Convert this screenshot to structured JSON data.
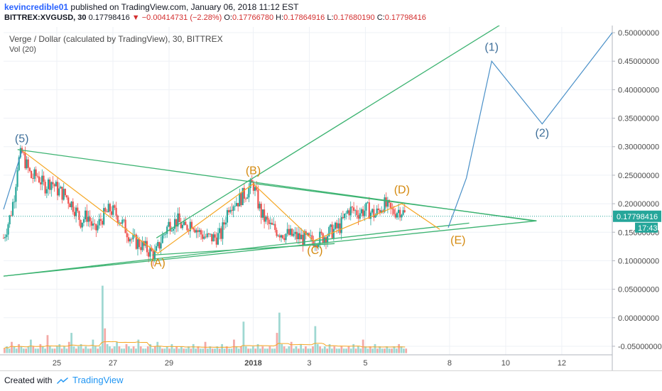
{
  "header": {
    "author": "kevincredible01",
    "published_text": " published on TradingView.com, January 06, 2018 11:12 EST",
    "symbol": "BITTREX:XVGUSD, 30",
    "last": "0.17798416",
    "change": "▼ −0.00414731 (−2.28%)",
    "o_label": "O:",
    "o_value": "0.17766780",
    "h_label": "H:",
    "h_value": "0.17864916",
    "l_label": "L:",
    "l_value": "0.17680190",
    "c_label": "C:",
    "c_value": "0.17798416"
  },
  "chart_title": "Verge / Dollar (calculated by TradingView), 30, BITTREX",
  "vol_label": "Vol (20)",
  "footer": {
    "created_with": "Created with",
    "brand": "TradingView"
  },
  "colors": {
    "up": "#26a69a",
    "down": "#ef5350",
    "trend": "#3cb371",
    "wave_abcde": "#f5a623",
    "wave_projection": "#4a90c8",
    "price_label": "#26a69a"
  },
  "chart_data": {
    "type": "candlestick",
    "title": "Verge / Dollar (calculated by TradingView), 30, BITTREX",
    "y_ticks": [
      "0.50000000",
      "0.45000000",
      "0.40000000",
      "0.35000000",
      "0.30000000",
      "0.25000000",
      "0.20000000",
      "0.15000000",
      "0.10000000",
      "0.05000000",
      "0.00000000",
      "-0.05000000"
    ],
    "y_range": [
      -0.065,
      0.51
    ],
    "x_ticks": [
      {
        "label": "25",
        "day": 25
      },
      {
        "label": "27",
        "day": 27
      },
      {
        "label": "29",
        "day": 29
      },
      {
        "label": "2018",
        "day": 32,
        "bold": true
      },
      {
        "label": "3",
        "day": 34
      },
      {
        "label": "5",
        "day": 36
      },
      {
        "label": "8",
        "day": 39
      },
      {
        "label": "10",
        "day": 41
      },
      {
        "label": "12",
        "day": 43
      }
    ],
    "x_range": [
      23.1,
      44.8
    ],
    "last_price": 0.17798416,
    "last_price_label": "0.17798416",
    "countdown": "17:43",
    "price_path": [
      [
        23.1,
        0.14
      ],
      [
        23.35,
        0.18
      ],
      [
        23.5,
        0.22
      ],
      [
        23.6,
        0.27
      ],
      [
        23.75,
        0.29
      ],
      [
        23.9,
        0.27
      ],
      [
        24.1,
        0.245
      ],
      [
        24.3,
        0.25
      ],
      [
        24.55,
        0.23
      ],
      [
        24.8,
        0.24
      ],
      [
        25.0,
        0.225
      ],
      [
        25.3,
        0.215
      ],
      [
        25.6,
        0.195
      ],
      [
        25.85,
        0.17
      ],
      [
        26.1,
        0.18
      ],
      [
        26.35,
        0.15
      ],
      [
        26.6,
        0.175
      ],
      [
        26.9,
        0.19
      ],
      [
        27.15,
        0.18
      ],
      [
        27.4,
        0.16
      ],
      [
        27.7,
        0.135
      ],
      [
        27.95,
        0.13
      ],
      [
        28.2,
        0.12
      ],
      [
        28.5,
        0.11
      ],
      [
        28.75,
        0.14
      ],
      [
        29.0,
        0.165
      ],
      [
        29.3,
        0.17
      ],
      [
        29.55,
        0.155
      ],
      [
        29.8,
        0.17
      ],
      [
        30.05,
        0.15
      ],
      [
        30.35,
        0.14
      ],
      [
        30.6,
        0.14
      ],
      [
        30.85,
        0.145
      ],
      [
        31.15,
        0.2
      ],
      [
        31.45,
        0.205
      ],
      [
        31.75,
        0.22
      ],
      [
        32.0,
        0.235
      ],
      [
        32.15,
        0.205
      ],
      [
        32.3,
        0.18
      ],
      [
        32.6,
        0.16
      ],
      [
        32.95,
        0.15
      ],
      [
        33.3,
        0.145
      ],
      [
        33.7,
        0.14
      ],
      [
        34.05,
        0.135
      ],
      [
        34.4,
        0.14
      ],
      [
        34.75,
        0.15
      ],
      [
        35.1,
        0.16
      ],
      [
        35.4,
        0.19
      ],
      [
        35.75,
        0.185
      ],
      [
        36.05,
        0.19
      ],
      [
        36.35,
        0.18
      ],
      [
        36.65,
        0.2
      ],
      [
        36.95,
        0.185
      ],
      [
        37.25,
        0.19
      ],
      [
        37.45,
        0.178
      ]
    ],
    "trendlines": [
      {
        "name": "upper-channel",
        "from": [
          23.1,
          0.073
        ],
        "to": [
          39.7,
          0.166
        ]
      },
      {
        "name": "abc-support",
        "from": [
          28.4,
          0.11
        ],
        "to": [
          34.9,
          0.13
        ]
      },
      {
        "name": "triangle-top",
        "from": [
          23.6,
          0.295
        ],
        "to": [
          42.0,
          0.17
        ]
      },
      {
        "name": "triangle-inner",
        "from": [
          32.1,
          0.235
        ],
        "to": [
          42.1,
          0.17
        ]
      },
      {
        "name": "lower-trend",
        "from": [
          23.1,
          0.073
        ],
        "to": [
          42.1,
          0.17
        ]
      },
      {
        "name": "rising-wedge-top",
        "from": [
          28.55,
          0.14
        ],
        "to": [
          40.85,
          0.515
        ]
      }
    ],
    "wave_abcde": {
      "points": [
        [
          23.8,
          0.292
        ],
        [
          28.6,
          0.113
        ],
        [
          32.0,
          0.235
        ],
        [
          34.15,
          0.135
        ],
        [
          37.3,
          0.2
        ],
        [
          38.65,
          0.155
        ]
      ],
      "labels": [
        {
          "text": "(A)",
          "x": 28.6,
          "y": 0.09
        },
        {
          "text": "(B)",
          "x": 32.0,
          "y": 0.252
        },
        {
          "text": "(C)",
          "x": 34.2,
          "y": 0.112
        },
        {
          "text": "(D)",
          "x": 37.3,
          "y": 0.218
        },
        {
          "text": "(E)",
          "x": 39.3,
          "y": 0.13
        }
      ]
    },
    "wave_projection": {
      "points": [
        [
          23.1,
          0.19
        ],
        [
          23.75,
          0.292
        ]
      ],
      "projection": [
        [
          38.95,
          0.158
        ],
        [
          39.6,
          0.245
        ],
        [
          40.5,
          0.45
        ],
        [
          42.3,
          0.34
        ],
        [
          44.8,
          0.5
        ]
      ],
      "labels": [
        {
          "text": "(5)",
          "x": 23.75,
          "y": 0.308
        },
        {
          "text": "(1)",
          "x": 40.5,
          "y": 0.468
        },
        {
          "text": "(2)",
          "x": 42.3,
          "y": 0.318
        }
      ]
    },
    "volume": [
      2,
      3,
      2,
      5,
      3,
      2,
      4,
      3,
      2,
      2,
      3,
      6,
      3,
      2,
      2,
      4,
      3,
      2,
      8,
      3,
      2,
      2,
      3,
      4,
      2,
      3,
      2,
      5,
      9,
      3,
      2,
      3,
      4,
      2,
      3,
      2,
      2,
      6,
      3,
      2,
      3,
      30,
      11,
      4,
      3,
      2,
      3,
      5,
      3,
      2,
      2,
      4,
      3,
      2,
      3,
      2,
      6,
      3,
      2,
      2,
      3,
      4,
      2,
      3,
      5,
      3,
      2,
      2,
      3,
      2,
      4,
      2,
      3,
      2,
      3,
      2,
      2,
      3,
      2,
      4,
      2,
      3,
      2,
      2,
      5,
      2,
      3,
      2,
      2,
      3,
      2,
      4,
      2,
      3,
      2,
      2,
      6,
      3,
      2,
      3,
      14,
      3,
      2,
      2,
      3,
      2,
      4,
      2,
      3,
      2,
      2,
      3,
      2,
      2,
      9,
      18,
      4,
      3,
      2,
      3,
      5,
      2,
      3,
      2,
      4,
      2,
      3,
      2,
      2,
      3,
      12,
      4,
      3,
      2,
      3,
      2,
      4,
      2,
      3,
      2,
      2,
      3,
      2,
      2,
      3,
      2,
      4,
      2,
      3,
      2,
      6,
      3,
      2,
      3,
      2,
      4,
      2,
      3,
      2,
      2,
      3,
      2,
      2,
      3,
      2,
      4,
      3,
      2,
      2
    ]
  }
}
